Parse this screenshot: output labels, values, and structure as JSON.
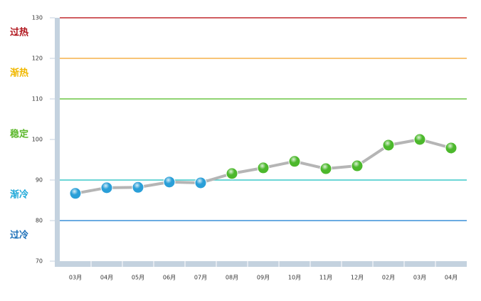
{
  "chart_data": {
    "type": "line",
    "categories": [
      "03月",
      "04月",
      "05月",
      "06月",
      "07月",
      "08月",
      "09月",
      "10月",
      "11月",
      "12月",
      "02月",
      "03月",
      "04月"
    ],
    "values": [
      86.7,
      88.1,
      88.2,
      89.5,
      89.3,
      91.6,
      93.0,
      94.6,
      92.8,
      93.5,
      98.6,
      100,
      97.9
    ],
    "point_colors": [
      "#2a9fd8",
      "#2a9fd8",
      "#2a9fd8",
      "#2a9fd8",
      "#2a9fd8",
      "#4cb82c",
      "#4cb82c",
      "#4cb82c",
      "#4cb82c",
      "#4cb82c",
      "#4cb82c",
      "#4cb82c",
      "#4cb82c"
    ],
    "line_color": "#b5b5b5",
    "ylim": [
      70,
      130
    ],
    "yticks": [
      70,
      80,
      90,
      100,
      110,
      120,
      130
    ],
    "reference_lines": [
      {
        "value": 130,
        "color": "#c0282d"
      },
      {
        "value": 120,
        "color": "#f5b04a"
      },
      {
        "value": 110,
        "color": "#6cc644"
      },
      {
        "value": 90,
        "color": "#3cc8c8"
      },
      {
        "value": 80,
        "color": "#3a8fd8"
      }
    ],
    "zones": [
      {
        "label": "过热",
        "color": "#b0141c"
      },
      {
        "label": "渐热",
        "color": "#f0b800"
      },
      {
        "label": "稳定",
        "color": "#5cb82c"
      },
      {
        "label": "渐冷",
        "color": "#1ea8d8"
      },
      {
        "label": "过冷",
        "color": "#1a6fb8"
      }
    ]
  }
}
